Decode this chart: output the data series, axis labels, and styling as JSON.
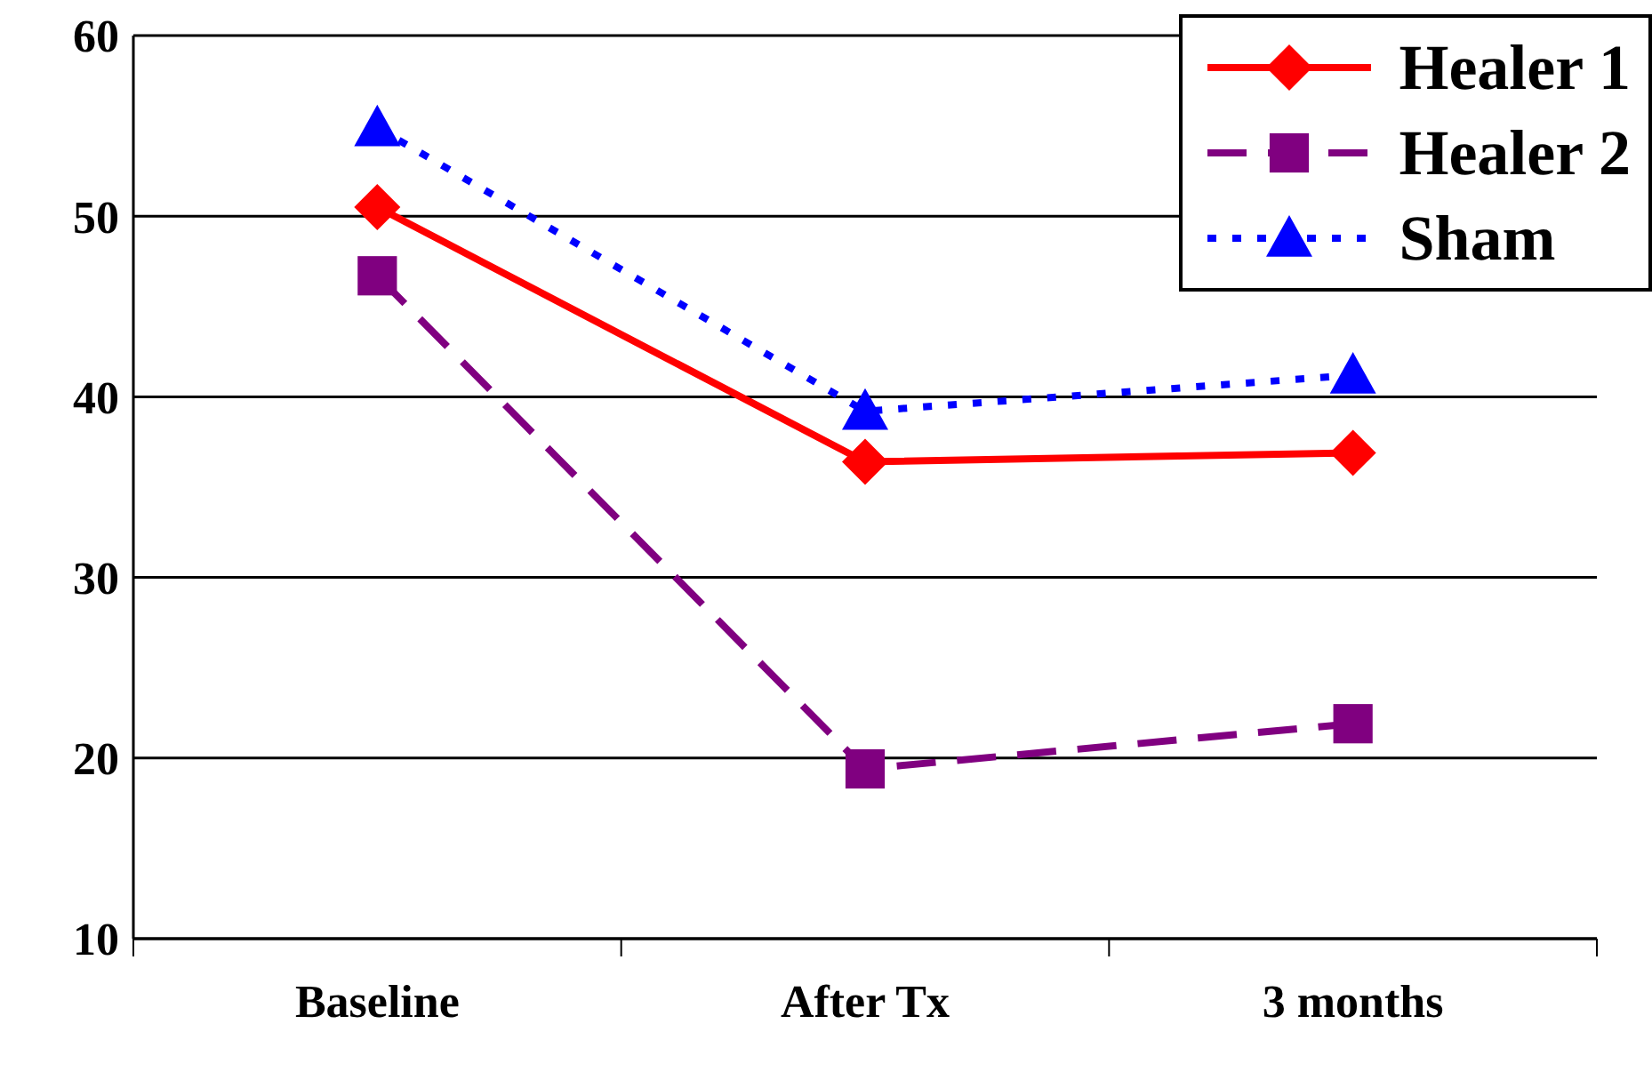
{
  "chart_data": {
    "type": "line",
    "categories": [
      "Baseline",
      "After Tx",
      "3 months"
    ],
    "series": [
      {
        "name": "Healer 1",
        "color": "#ff0000",
        "marker": "diamond",
        "line_style": "solid",
        "values": [
          50.5,
          36.4,
          36.9
        ]
      },
      {
        "name": "Healer 2",
        "color": "#800080",
        "marker": "square",
        "line_style": "dashed",
        "values": [
          46.7,
          19.4,
          21.9
        ]
      },
      {
        "name": "Sham",
        "color": "#0000ff",
        "marker": "triangle",
        "line_style": "dotted",
        "values": [
          54.9,
          39.2,
          41.2
        ]
      }
    ],
    "ylim": [
      10,
      60
    ],
    "yticks": [
      10,
      20,
      30,
      40,
      50,
      60
    ],
    "grid": "y",
    "legend": "top right"
  }
}
